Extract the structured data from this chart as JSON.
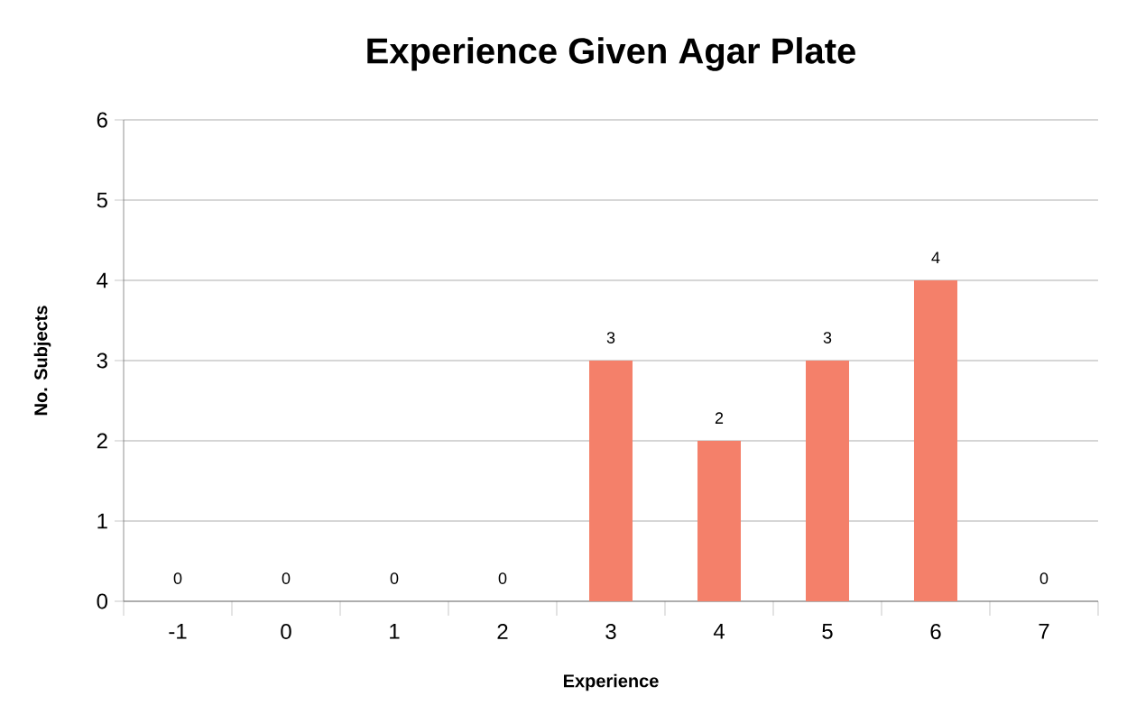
{
  "chart_data": {
    "type": "bar",
    "title": "Experience Given Agar Plate",
    "xlabel": "Experience",
    "ylabel": "No. Subjects",
    "categories": [
      "-1",
      "0",
      "1",
      "2",
      "3",
      "4",
      "5",
      "6",
      "7"
    ],
    "values": [
      0,
      0,
      0,
      0,
      3,
      2,
      3,
      4,
      0
    ],
    "color": "#f4806a",
    "ylim": [
      0,
      6
    ],
    "yticks": [
      0,
      1,
      2,
      3,
      4,
      5,
      6
    ],
    "grid": "y",
    "data_labels": true
  }
}
